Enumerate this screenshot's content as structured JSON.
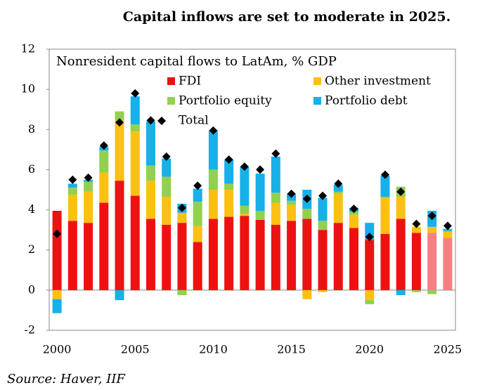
{
  "chart_data": {
    "type": "stacked_bar",
    "title": "Capital inflows are set to moderate in 2025.",
    "subtitle": "Nonresident capital flows to LatAm, % GDP",
    "source": "Source: Haver, IIF",
    "categories": [
      2000,
      null,
      null,
      null,
      null,
      2005,
      null,
      null,
      null,
      null,
      2010,
      null,
      null,
      null,
      null,
      2015,
      null,
      null,
      null,
      null,
      2020,
      null,
      null,
      null,
      null,
      2025
    ],
    "series": [
      {
        "name": "FDI",
        "color": "#ee1111",
        "point_colors": [
          "#ee1111",
          "#ee1111",
          "#ee1111",
          "#ee1111",
          "#ee1111",
          "#ee1111",
          "#ee1111",
          "#ee1111",
          "#ee1111",
          "#ee1111",
          "#ee1111",
          "#ee1111",
          "#ee1111",
          "#ee1111",
          "#ee1111",
          "#ee1111",
          "#ee1111",
          "#ee1111",
          "#ee1111",
          "#ee1111",
          "#ee1111",
          "#ee1111",
          "#ee1111",
          "#ee1111",
          "#f48080",
          "#f48080"
        ],
        "values": [
          3.95,
          3.45,
          3.35,
          4.35,
          5.45,
          4.7,
          3.55,
          3.25,
          3.35,
          2.4,
          3.55,
          3.65,
          3.7,
          3.5,
          3.25,
          3.45,
          3.55,
          3.0,
          3.35,
          3.1,
          2.5,
          2.8,
          3.55,
          2.85,
          2.85,
          2.6
        ]
      },
      {
        "name": "Other investment",
        "color": "#fbc012",
        "values": [
          -0.45,
          1.3,
          1.55,
          1.5,
          3.0,
          3.2,
          1.9,
          1.4,
          0.5,
          0.8,
          1.45,
          1.35,
          0.1,
          0,
          1.1,
          0.8,
          -0.45,
          -0.1,
          1.45,
          0.65,
          -0.5,
          1.8,
          1.1,
          0.3,
          0.3,
          0.3
        ]
      },
      {
        "name": "Portfolio equity",
        "color": "#92d050",
        "values": [
          0,
          0.35,
          0.5,
          1.1,
          0.45,
          0.35,
          0.75,
          1.0,
          -0.25,
          1.2,
          1.0,
          0.3,
          0.4,
          0.45,
          0.5,
          0.2,
          0.5,
          0.45,
          0.1,
          0.15,
          -0.2,
          0.05,
          0.5,
          -0.1,
          -0.2,
          0.05
        ]
      },
      {
        "name": "Portfolio debt",
        "color": "#17b0ea",
        "values": [
          -0.7,
          0.2,
          0.1,
          0.2,
          -0.5,
          1.4,
          2.2,
          0.9,
          0.45,
          0.65,
          1.95,
          1.2,
          1.95,
          1.85,
          1.8,
          0.35,
          0.95,
          1.15,
          0.35,
          0.2,
          0.85,
          1.05,
          -0.25,
          0,
          0.8,
          0.1
        ]
      }
    ],
    "total": {
      "name": "Total",
      "color": "#000000",
      "values": [
        2.8,
        5.5,
        5.6,
        7.2,
        8.35,
        9.8,
        8.45,
        6.65,
        4.1,
        5.2,
        7.95,
        6.5,
        6.15,
        6.0,
        6.8,
        4.8,
        4.55,
        4.7,
        5.3,
        4.05,
        2.65,
        5.75,
        4.9,
        3.3,
        3.7,
        3.2
      ]
    },
    "ylim": [
      -2,
      12
    ],
    "yticks": [
      -2,
      0,
      2,
      4,
      6,
      8,
      10,
      12
    ]
  }
}
